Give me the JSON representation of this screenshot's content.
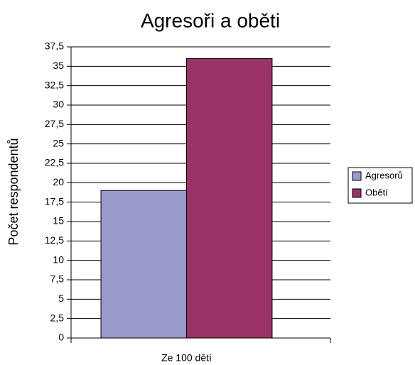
{
  "chart_data": {
    "type": "bar",
    "title": "Agresoři a oběti",
    "ylabel": "Počet respondentů",
    "categories": [
      "Ze 100 dětí"
    ],
    "series": [
      {
        "name": "Agresorů",
        "color": "#9999cc",
        "values": [
          19
        ]
      },
      {
        "name": "Obětí",
        "color": "#993366",
        "values": [
          36
        ]
      }
    ],
    "ylim": [
      0,
      37.5
    ],
    "yticks": [
      0,
      {
        "value": 2.5,
        "label": "2,5"
      },
      5,
      {
        "value": 7.5,
        "label": "7,5"
      },
      10,
      {
        "value": 12.5,
        "label": "12,5"
      },
      15,
      {
        "value": 17.5,
        "label": "17,5"
      },
      20,
      {
        "value": 22.5,
        "label": "22,5"
      },
      25,
      {
        "value": 27.5,
        "label": "27,5"
      },
      30,
      {
        "value": 32.5,
        "label": "32,5"
      },
      35,
      {
        "value": 37.5,
        "label": "37,5"
      }
    ],
    "grid": true,
    "legend": "right"
  }
}
